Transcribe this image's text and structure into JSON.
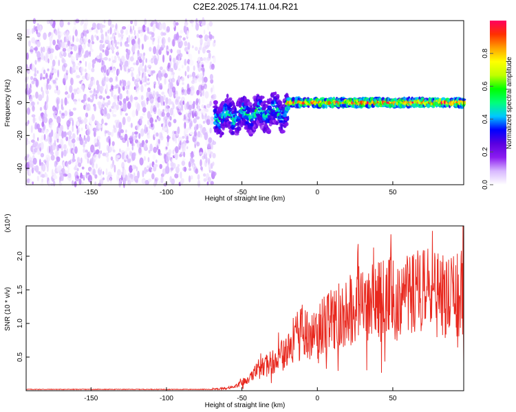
{
  "chart_data": [
    {
      "type": "heatmap",
      "title": "C2E2.2025.174.11.04.R21",
      "xlabel": "Height of straight line (km)",
      "ylabel": "Frequency (Hz)",
      "xlim": [
        -193,
        97
      ],
      "ylim": [
        -50,
        50
      ],
      "x_ticks": [
        -150,
        -100,
        -50,
        0,
        50
      ],
      "y_ticks": [
        -40,
        -20,
        0,
        20,
        40
      ],
      "colorbar": {
        "label": "Normalized spectral amplitude",
        "ticks": [
          0.0,
          0.2,
          0.4,
          0.6,
          0.8
        ],
        "range": [
          0,
          1
        ],
        "colormap": [
          "#ffffff",
          "#d8b8ff",
          "#8c1cf0",
          "#5a00e0",
          "#0000ff",
          "#00c8ff",
          "#00ff7a",
          "#00ff00",
          "#c0ff00",
          "#ffff00",
          "#ffa000",
          "#ff3000",
          "#ff0060"
        ]
      },
      "regions": [
        {
          "from_km": -193,
          "to_km": -68,
          "description": "noise",
          "amplitude": 0.05,
          "freq_spread_hz": 50
        },
        {
          "from_km": -68,
          "to_km": -20,
          "description": "signal onset",
          "amplitude": 0.45,
          "center_hz": -5,
          "freq_spread_hz": 12
        },
        {
          "from_km": -20,
          "to_km": 97,
          "description": "tone at 0 Hz",
          "amplitude": 0.9,
          "center_hz": 0,
          "freq_spread_hz": 3
        }
      ],
      "grid": false
    },
    {
      "type": "line",
      "xlabel": "Height of straight line (km)",
      "ylabel": "SNR (10 * v/v)",
      "y_multiplier": "(x10⁴)",
      "xlim": [
        -193,
        97
      ],
      "ylim": [
        0,
        2.45
      ],
      "x_ticks": [
        -150,
        -100,
        -50,
        0,
        50
      ],
      "y_ticks": [
        0.5,
        1.0,
        1.5,
        2.0
      ],
      "color": "#e8281e",
      "x": [
        -193,
        -70,
        -55,
        -50,
        -45,
        -40,
        -35,
        -30,
        -25,
        -20,
        -15,
        -10,
        -5,
        0,
        5,
        10,
        20,
        30,
        40,
        50,
        60,
        70,
        80,
        90,
        97
      ],
      "y": [
        0.02,
        0.02,
        0.05,
        0.12,
        0.18,
        0.3,
        0.35,
        0.45,
        0.5,
        0.58,
        0.75,
        0.9,
        0.8,
        0.95,
        1.0,
        1.05,
        1.2,
        1.3,
        1.35,
        1.4,
        1.45,
        1.5,
        1.42,
        1.4,
        1.45
      ],
      "grid": false
    }
  ]
}
